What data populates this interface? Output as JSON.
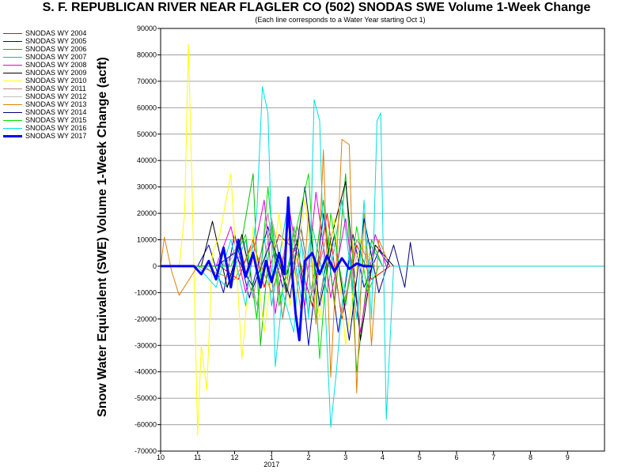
{
  "chart_data": {
    "type": "line",
    "title": "S. F. REPUBLICAN RIVER NEAR FLAGLER CO (502) SNODAS SWE Volume 1-Week Change",
    "subtitle": "(Each line corresponds to a Water Year starting Oct 1)",
    "ylabel": "Snow Water Equivalent (SWE) Volume 1-Week Change (acft)",
    "xlabel": "",
    "xlim": [
      10,
      22
    ],
    "ylim": [
      -70000,
      90000
    ],
    "y_ticks": [
      90000,
      80000,
      70000,
      60000,
      50000,
      40000,
      30000,
      20000,
      10000,
      0,
      -10000,
      -20000,
      -30000,
      -40000,
      -50000,
      -60000,
      -70000
    ],
    "y_tick_labels": [
      "90000",
      "80000",
      "70000",
      "60000",
      "50000",
      "40000",
      "30000",
      "20000",
      "10000",
      "0",
      "-10000",
      "-20000",
      "-30000",
      "-40000",
      "-50000",
      "-60000",
      "-70000"
    ],
    "x_ticks": [
      10,
      11,
      12,
      13,
      14,
      15,
      16,
      17,
      18,
      19,
      20,
      21
    ],
    "x_tick_labels": [
      "10",
      "11",
      "12",
      "1",
      "2",
      "3",
      "4",
      "5",
      "6",
      "7",
      "8",
      "9"
    ],
    "x_year_label": "2017",
    "grid": true,
    "legend_position": "left-outside",
    "series": [
      {
        "name": "SNODAS WY 2004",
        "color": "#ff0000",
        "width": 1,
        "x": [
          10.0,
          11.6,
          12.1,
          12.5,
          12.8,
          13.2,
          13.7,
          14.1,
          14.5,
          14.9,
          15.3,
          15.7,
          16.2
        ],
        "y": [
          0,
          0,
          -5000,
          10000,
          -8000,
          12000,
          5000,
          -15000,
          20000,
          -20000,
          8000,
          -5000,
          0
        ]
      },
      {
        "name": "SNODAS WY 2005",
        "color": "#0000c0",
        "width": 1,
        "x": [
          10.0,
          11.0,
          11.3,
          11.7,
          12.0,
          12.4,
          12.9,
          13.3,
          13.7,
          14.0,
          14.4,
          14.8,
          15.2,
          15.5,
          15.9,
          16.2
        ],
        "y": [
          0,
          0,
          8000,
          -10000,
          12000,
          -12000,
          15000,
          -8000,
          10000,
          -30000,
          20000,
          -25000,
          12000,
          -8000,
          6000,
          0
        ]
      },
      {
        "name": "SNODAS WY 2006",
        "color": "#00c000",
        "width": 1,
        "x": [
          10.0,
          11.9,
          12.2,
          12.5,
          12.7,
          13.0,
          13.3,
          13.6,
          14.0,
          14.4,
          14.7,
          15.0,
          15.3,
          15.7,
          16.0
        ],
        "y": [
          0,
          0,
          10000,
          35000,
          -30000,
          18000,
          -20000,
          15000,
          -18000,
          25000,
          -15000,
          35000,
          -40000,
          10000,
          0
        ]
      },
      {
        "name": "SNODAS WY 2007",
        "color": "#00c0c0",
        "width": 1,
        "x": [
          10.0,
          11.2,
          11.8,
          12.3,
          12.6,
          12.8,
          13.0,
          13.4,
          13.8,
          14.1,
          14.5,
          14.9,
          15.3,
          15.6,
          16.0
        ],
        "y": [
          0,
          0,
          -8000,
          10000,
          -20000,
          12000,
          -15000,
          20000,
          -12000,
          15000,
          -10000,
          25000,
          -20000,
          10000,
          0
        ]
      },
      {
        "name": "SNODAS WY 2008",
        "color": "#e000e0",
        "width": 1,
        "x": [
          10.0,
          11.5,
          11.9,
          12.3,
          12.8,
          13.1,
          13.5,
          13.9,
          14.2,
          14.6,
          15.0,
          15.4,
          15.8,
          16.1
        ],
        "y": [
          0,
          0,
          15000,
          -10000,
          25000,
          -18000,
          20000,
          -15000,
          28000,
          -12000,
          18000,
          -25000,
          12000,
          0
        ]
      },
      {
        "name": "SNODAS WY 2009",
        "color": "#000000",
        "width": 1,
        "x": [
          10.0,
          11.1,
          11.4,
          11.8,
          12.2,
          12.6,
          13.0,
          13.4,
          13.8,
          14.2,
          14.6,
          15.0,
          15.4,
          15.8,
          16.3
        ],
        "y": [
          0,
          0,
          17000,
          -8000,
          12000,
          -15000,
          18000,
          -10000,
          14000,
          -20000,
          10000,
          32000,
          -28000,
          8000,
          0
        ]
      },
      {
        "name": "SNODAS WY 2010",
        "color": "#ffff00",
        "width": 1,
        "x": [
          10.0,
          10.5,
          10.65,
          10.75,
          10.85,
          11.0,
          11.1,
          11.25,
          11.4,
          11.6,
          11.9,
          12.2,
          12.5,
          12.8,
          13.2,
          13.5,
          13.9,
          14.3,
          14.7,
          15.0,
          15.4,
          15.8
        ],
        "y": [
          0,
          0,
          20000,
          84000,
          30000,
          -64000,
          -30000,
          -47000,
          5000,
          12000,
          35000,
          -35000,
          15000,
          -25000,
          20000,
          -15000,
          25000,
          -20000,
          18000,
          -30000,
          10000,
          0
        ]
      },
      {
        "name": "SNODAS WY 2011",
        "color": "#c08080",
        "width": 1,
        "x": [
          10.0,
          11.7,
          12.1,
          12.5,
          12.9,
          13.3,
          13.7,
          14.1,
          14.5,
          14.9,
          15.3,
          15.7
        ],
        "y": [
          0,
          0,
          8000,
          -12000,
          20000,
          -20000,
          15000,
          -10000,
          12000,
          -18000,
          10000,
          0
        ]
      },
      {
        "name": "SNODAS WY 2012",
        "color": "#c0c0c0",
        "width": 1,
        "x": [
          10.0,
          11.8,
          12.2,
          12.6,
          13.0,
          13.4,
          13.8,
          14.2,
          14.6,
          15.0,
          15.4,
          15.8
        ],
        "y": [
          0,
          0,
          10000,
          -15000,
          18000,
          -12000,
          15000,
          -20000,
          12000,
          -10000,
          8000,
          0
        ]
      },
      {
        "name": "SNODAS WY 2013",
        "color": "#e08000",
        "width": 1,
        "x": [
          10.0,
          10.1,
          10.3,
          10.5,
          11.0,
          12.0,
          12.5,
          13.0,
          13.5,
          13.8,
          14.0,
          14.2,
          14.4,
          14.6,
          14.8,
          14.9,
          15.1,
          15.3,
          15.5,
          15.7,
          15.9,
          16.2
        ],
        "y": [
          0,
          11000,
          -2000,
          -11000,
          0,
          -5000,
          8000,
          -10000,
          12000,
          -18000,
          20000,
          -22000,
          44000,
          -42000,
          15000,
          48000,
          46000,
          -48000,
          20000,
          -30000,
          10000,
          0
        ]
      },
      {
        "name": "SNODAS WY 2014",
        "color": "#000080",
        "width": 1,
        "x": [
          10.0,
          11.5,
          12.0,
          12.5,
          13.0,
          13.5,
          13.9,
          14.3,
          14.7,
          15.1,
          15.5,
          15.9,
          16.3,
          16.6,
          16.75,
          16.85
        ],
        "y": [
          0,
          0,
          5000,
          -8000,
          10000,
          -12000,
          30000,
          -15000,
          12000,
          -28000,
          18000,
          -10000,
          8000,
          -8000,
          9000,
          0
        ]
      },
      {
        "name": "SNODAS WY 2015",
        "color": "#00e000",
        "width": 1,
        "x": [
          10.0,
          11.9,
          12.3,
          12.6,
          12.9,
          13.2,
          13.6,
          14.0,
          14.3,
          14.6,
          15.0,
          15.3,
          15.6,
          15.9
        ],
        "y": [
          0,
          0,
          12000,
          -20000,
          30000,
          -15000,
          10000,
          35000,
          -35000,
          20000,
          -15000,
          15000,
          -10000,
          0
        ]
      },
      {
        "name": "SNODAS WY 2016",
        "color": "#00e0e0",
        "width": 1,
        "x": [
          10.0,
          11.0,
          11.5,
          11.9,
          12.3,
          12.6,
          12.75,
          12.9,
          13.1,
          13.3,
          13.6,
          13.8,
          14.0,
          14.15,
          14.3,
          14.45,
          14.6,
          14.75,
          14.9,
          15.1,
          15.3,
          15.5,
          15.7,
          15.85,
          15.95,
          16.1,
          16.3,
          16.6,
          17.0,
          18.0,
          19.0,
          20.0,
          21.0,
          22.0
        ],
        "y": [
          0,
          0,
          -8000,
          10000,
          -15000,
          20000,
          68000,
          58000,
          -38000,
          -10000,
          -25000,
          10000,
          -20000,
          63000,
          55000,
          -15000,
          -61000,
          -40000,
          -15000,
          5000,
          -20000,
          25000,
          -20000,
          55000,
          58000,
          -58000,
          0,
          0,
          0,
          0,
          0,
          0,
          0,
          0
        ]
      },
      {
        "name": "SNODAS WY 2017",
        "color": "#0000ff",
        "width": 3,
        "x": [
          10.0,
          10.9,
          11.1,
          11.3,
          11.5,
          11.7,
          11.9,
          12.1,
          12.3,
          12.5,
          12.7,
          12.85,
          13.0,
          13.2,
          13.35,
          13.45,
          13.55,
          13.65,
          13.75,
          13.9,
          14.1,
          14.3,
          14.5,
          14.7,
          14.9,
          15.1,
          15.3,
          15.5,
          15.7
        ],
        "y": [
          0,
          0,
          -3000,
          2000,
          -5000,
          7000,
          -8000,
          10000,
          -4000,
          5000,
          -8000,
          2000,
          -6000,
          5000,
          -3000,
          26000,
          -2000,
          -18000,
          -28000,
          2000,
          5000,
          -3000,
          4000,
          -2000,
          3000,
          -1000,
          1000,
          0,
          0
        ]
      }
    ]
  }
}
